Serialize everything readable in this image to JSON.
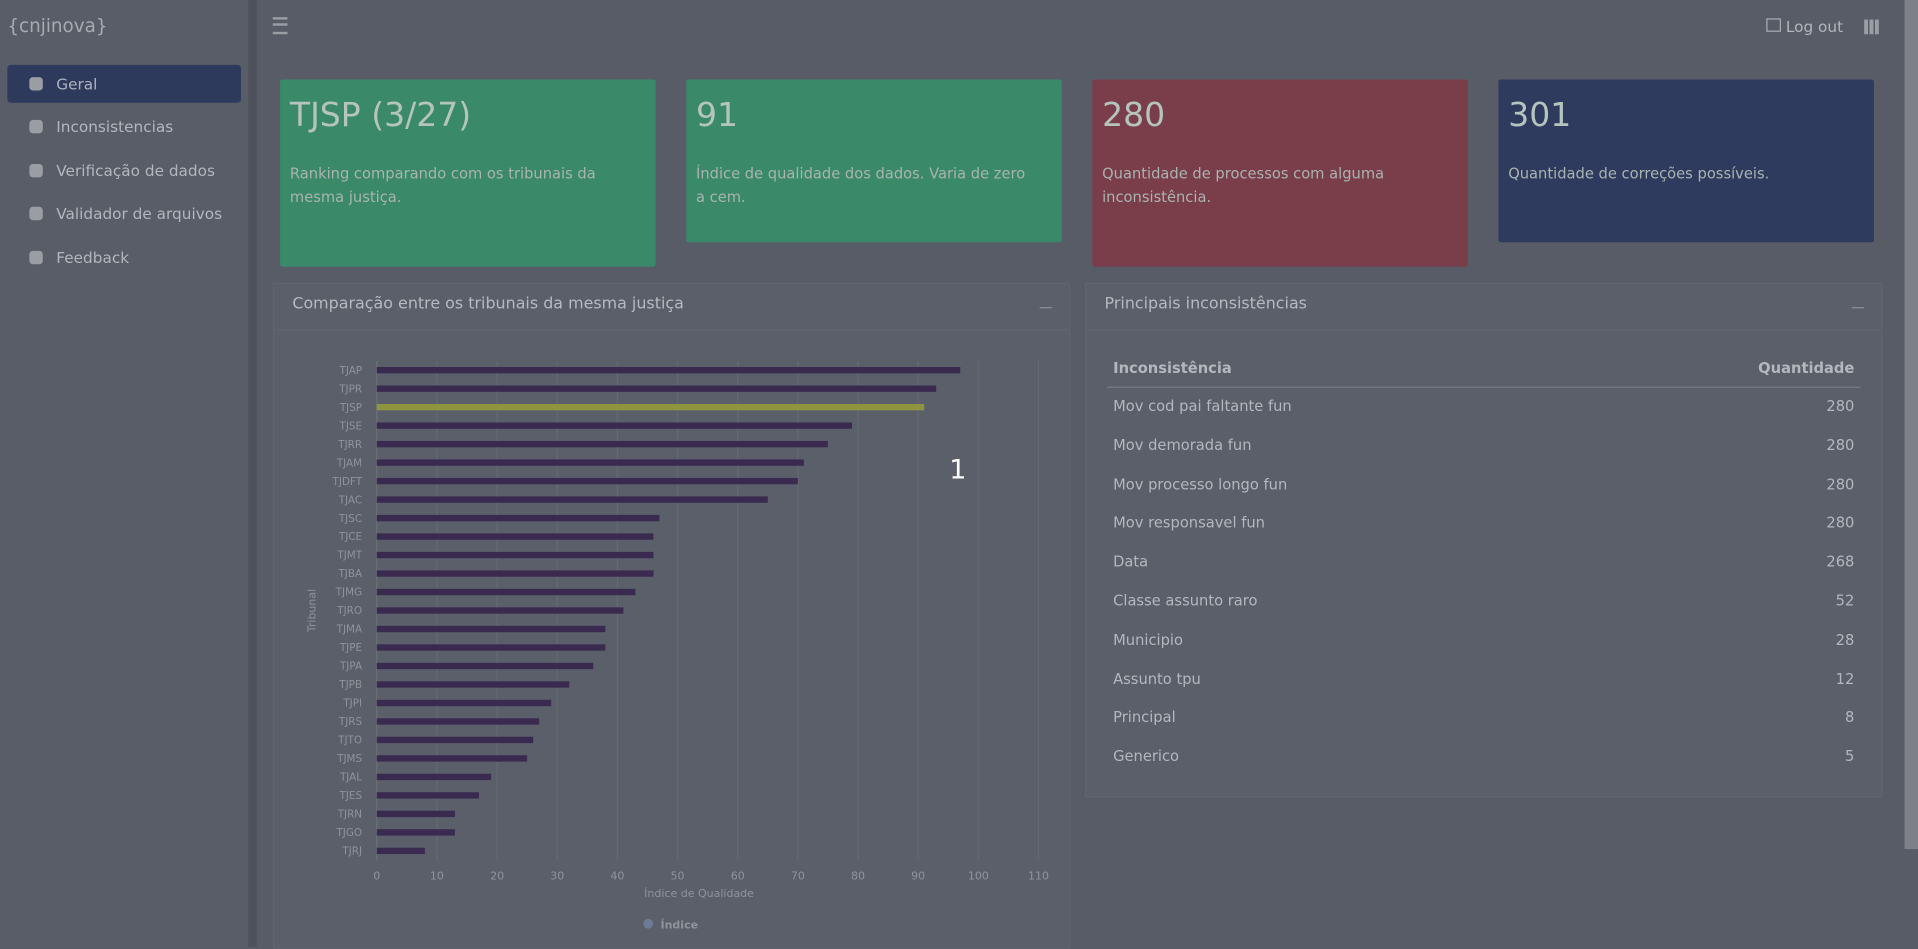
{
  "brand": "{cnjinova}",
  "nav": [
    {
      "label": "Geral",
      "active": true
    },
    {
      "label": "Inconsistencias"
    },
    {
      "label": "Verificação de dados"
    },
    {
      "label": "Validador de arquivos"
    },
    {
      "label": "Feedback"
    }
  ],
  "topbar": {
    "logout": "Log out"
  },
  "cards": [
    {
      "value": "TJSP (3/27)",
      "text": "Ranking comparando com os tribunais da mesma justiça.",
      "color": "#3a8a69"
    },
    {
      "value": "91",
      "text": "Índice de qualidade dos dados. Varia de zero a cem.",
      "color": "#3a8a69"
    },
    {
      "value": "280",
      "text": "Quantidade de processos com alguma inconsistência.",
      "color": "#7a3d4a"
    },
    {
      "value": "301",
      "text": "Quantidade de correções possíveis.",
      "color": "#2f3b5e"
    }
  ],
  "chart_panel": {
    "title": "Comparação entre os tribunais da mesma justiça"
  },
  "chart_data": {
    "type": "bar",
    "orientation": "horizontal",
    "categories": [
      "TJAP",
      "TJPR",
      "TJSP",
      "TJSE",
      "TJRR",
      "TJAM",
      "TJDFT",
      "TJAC",
      "TJSC",
      "TJCE",
      "TJMT",
      "TJBA",
      "TJMG",
      "TJRO",
      "TJMA",
      "TJPE",
      "TJPA",
      "TJPB",
      "TJPI",
      "TJRS",
      "TJTO",
      "TJMS",
      "TJAL",
      "TJES",
      "TJRN",
      "TJGO",
      "TJRJ"
    ],
    "series": [
      {
        "name": "Índice",
        "color": "#6e7b96",
        "values": [
          97,
          93,
          91,
          79,
          75,
          71,
          70,
          65,
          47,
          46,
          46,
          46,
          43,
          41,
          38,
          38,
          36,
          32,
          29,
          27,
          26,
          25,
          19,
          17,
          13,
          13,
          8
        ]
      }
    ],
    "colors": [
      "#3b2a50",
      "#3b2a50",
      "#8f9440",
      "#3b2a50",
      "#3b2a50",
      "#3b2a50",
      "#3b2a50",
      "#3b2a50",
      "#3b2a50",
      "#3b2a50",
      "#3b2a50",
      "#3b2a50",
      "#3b2a50",
      "#3b2a50",
      "#3b2a50",
      "#3b2a50",
      "#3b2a50",
      "#3b2a50",
      "#3b2a50",
      "#3b2a50",
      "#3b2a50",
      "#3b2a50",
      "#3b2a50",
      "#3b2a50",
      "#3b2a50",
      "#3b2a50",
      "#3b2a50"
    ],
    "xlim": [
      0,
      110
    ],
    "xticks": [
      0,
      10,
      20,
      30,
      40,
      50,
      60,
      70,
      80,
      90,
      100,
      110
    ],
    "xlabel": "Índice de Qualidade",
    "ylabel": "Tribunal",
    "grid": true,
    "legend": "bottom"
  },
  "table": {
    "title": "Principais inconsistências",
    "columns": [
      "Inconsistência",
      "Quantidade"
    ],
    "rows": [
      [
        "Mov cod pai faltante fun",
        280
      ],
      [
        "Mov demorada fun",
        280
      ],
      [
        "Mov processo longo fun",
        280
      ],
      [
        "Mov responsavel fun",
        280
      ],
      [
        "Data",
        268
      ],
      [
        "Classe assunto raro",
        52
      ],
      [
        "Municipio",
        28
      ],
      [
        "Assunto tpu",
        12
      ],
      [
        "Principal",
        8
      ],
      [
        "Generico",
        5
      ]
    ]
  },
  "overlay_label": "1"
}
